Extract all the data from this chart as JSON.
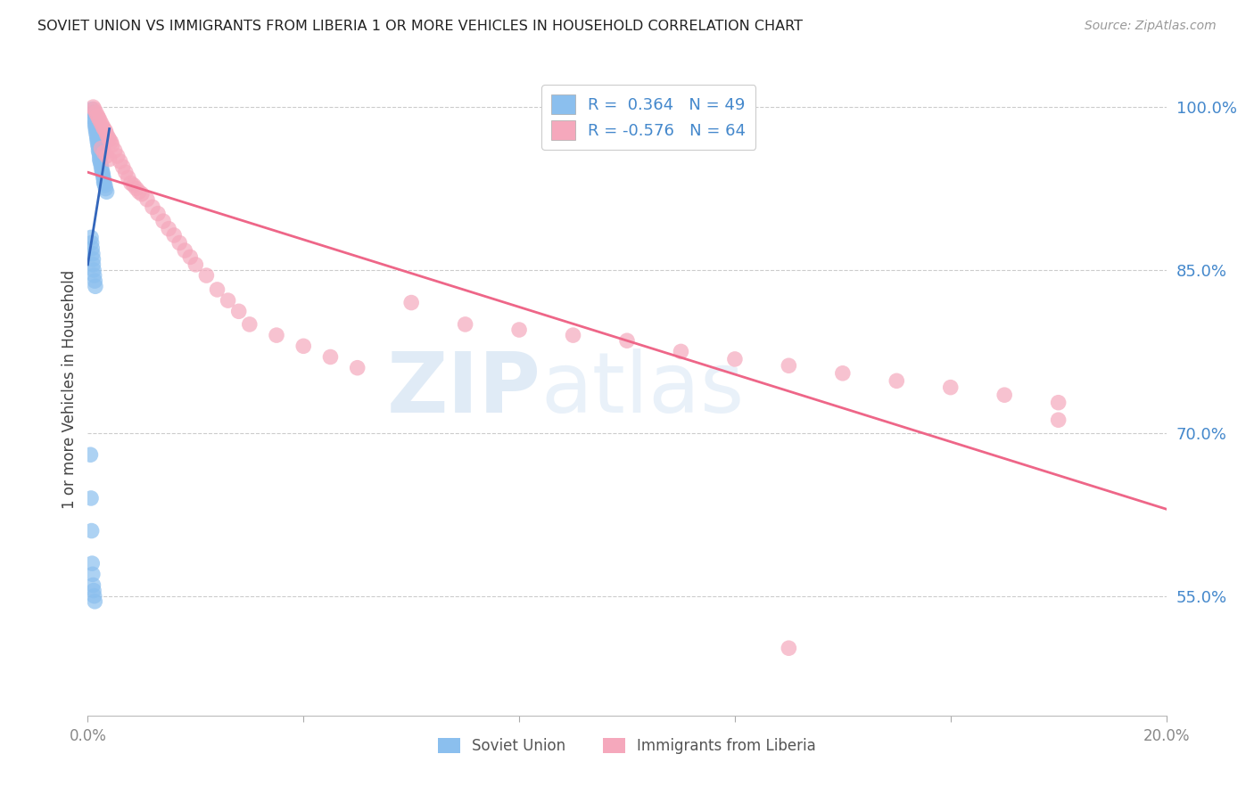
{
  "title": "SOVIET UNION VS IMMIGRANTS FROM LIBERIA 1 OR MORE VEHICLES IN HOUSEHOLD CORRELATION CHART",
  "source": "Source: ZipAtlas.com",
  "ylabel": "1 or more Vehicles in Household",
  "yticks": [
    0.55,
    0.7,
    0.85,
    1.0
  ],
  "ytick_labels": [
    "55.0%",
    "70.0%",
    "85.0%",
    "100.0%"
  ],
  "xlim": [
    0.0,
    0.2
  ],
  "ylim": [
    0.44,
    1.04
  ],
  "soviet_color": "#8BBFEE",
  "liberia_color": "#F5A8BC",
  "soviet_line_color": "#3366BB",
  "liberia_line_color": "#EE6688",
  "watermark_zip": "ZIP",
  "watermark_atlas": "atlas",
  "soviet_x": [
    0.0008,
    0.001,
    0.001,
    0.0012,
    0.0013,
    0.0014,
    0.0015,
    0.0015,
    0.0016,
    0.0017,
    0.0018,
    0.0018,
    0.0019,
    0.002,
    0.002,
    0.0021,
    0.0022,
    0.0022,
    0.0023,
    0.0024,
    0.0025,
    0.0026,
    0.0027,
    0.0028,
    0.0029,
    0.003,
    0.003,
    0.0032,
    0.0033,
    0.0035,
    0.0006,
    0.0007,
    0.0008,
    0.0009,
    0.001,
    0.001,
    0.0011,
    0.0012,
    0.0013,
    0.0014,
    0.0005,
    0.0006,
    0.0007,
    0.0008,
    0.0009,
    0.001,
    0.0011,
    0.0012,
    0.0013
  ],
  "soviet_y": [
    0.998,
    0.995,
    0.99,
    0.988,
    0.985,
    0.982,
    0.98,
    0.978,
    0.975,
    0.972,
    0.97,
    0.968,
    0.965,
    0.963,
    0.96,
    0.958,
    0.955,
    0.952,
    0.95,
    0.948,
    0.945,
    0.942,
    0.94,
    0.938,
    0.935,
    0.932,
    0.93,
    0.928,
    0.925,
    0.922,
    0.88,
    0.875,
    0.87,
    0.865,
    0.86,
    0.855,
    0.85,
    0.845,
    0.84,
    0.835,
    0.68,
    0.64,
    0.61,
    0.58,
    0.57,
    0.56,
    0.555,
    0.55,
    0.545
  ],
  "liberia_x": [
    0.001,
    0.0012,
    0.0015,
    0.0018,
    0.002,
    0.0022,
    0.0025,
    0.0028,
    0.003,
    0.0033,
    0.0035,
    0.0038,
    0.004,
    0.0043,
    0.0045,
    0.005,
    0.0055,
    0.006,
    0.0065,
    0.007,
    0.0075,
    0.008,
    0.0085,
    0.009,
    0.0095,
    0.01,
    0.011,
    0.012,
    0.013,
    0.014,
    0.015,
    0.016,
    0.017,
    0.018,
    0.019,
    0.02,
    0.022,
    0.024,
    0.026,
    0.028,
    0.03,
    0.035,
    0.04,
    0.045,
    0.05,
    0.06,
    0.07,
    0.08,
    0.09,
    0.1,
    0.11,
    0.12,
    0.13,
    0.14,
    0.15,
    0.16,
    0.17,
    0.18,
    0.0025,
    0.003,
    0.0035,
    0.004,
    0.13,
    0.18
  ],
  "liberia_y": [
    1.0,
    0.998,
    0.995,
    0.992,
    0.99,
    0.988,
    0.985,
    0.982,
    0.98,
    0.978,
    0.975,
    0.972,
    0.97,
    0.968,
    0.965,
    0.96,
    0.955,
    0.95,
    0.945,
    0.94,
    0.935,
    0.93,
    0.928,
    0.925,
    0.922,
    0.92,
    0.915,
    0.908,
    0.902,
    0.895,
    0.888,
    0.882,
    0.875,
    0.868,
    0.862,
    0.855,
    0.845,
    0.832,
    0.822,
    0.812,
    0.8,
    0.79,
    0.78,
    0.77,
    0.76,
    0.82,
    0.8,
    0.795,
    0.79,
    0.785,
    0.775,
    0.768,
    0.762,
    0.755,
    0.748,
    0.742,
    0.735,
    0.728,
    0.962,
    0.958,
    0.955,
    0.952,
    0.502,
    0.712
  ],
  "soviet_line_x": [
    0.0,
    0.004
  ],
  "soviet_line_y": [
    0.855,
    0.98
  ],
  "liberia_line_x": [
    0.0,
    0.2
  ],
  "liberia_line_y": [
    0.94,
    0.63
  ]
}
